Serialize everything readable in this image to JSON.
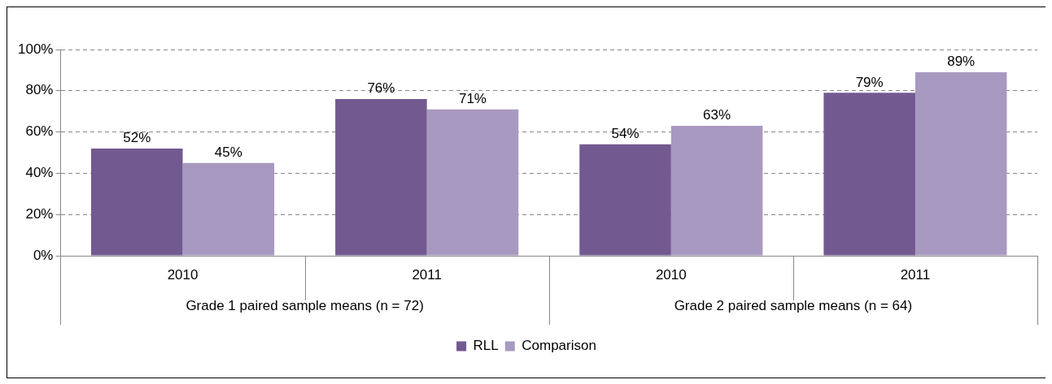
{
  "chart_data": {
    "type": "bar",
    "categories": [
      "2010",
      "2011",
      "2010",
      "2011"
    ],
    "series": [
      {
        "name": "RLL",
        "color": "#725990",
        "values": [
          52,
          76,
          54,
          79
        ],
        "value_labels": [
          "52%",
          "76%",
          "54%",
          "79%"
        ]
      },
      {
        "name": "Comparison",
        "color": "#a899c0",
        "values": [
          45,
          71,
          63,
          89
        ],
        "value_labels": [
          "45%",
          "71%",
          "63%",
          "89%"
        ]
      }
    ],
    "annotations": [
      "Grade 1 paired sample means (n = 72)",
      "Grade 2 paired sample means (n = 64)"
    ],
    "ylim": [
      0,
      100
    ],
    "yticks": [
      {
        "value": 0,
        "label": "0%"
      },
      {
        "value": 20,
        "label": "20%"
      },
      {
        "value": 40,
        "label": "40%"
      },
      {
        "value": 60,
        "label": "60%"
      },
      {
        "value": 80,
        "label": "80%"
      },
      {
        "value": 100,
        "label": "100%"
      }
    ],
    "grid": "y",
    "line_style": "dashed",
    "legend": "bottom"
  }
}
